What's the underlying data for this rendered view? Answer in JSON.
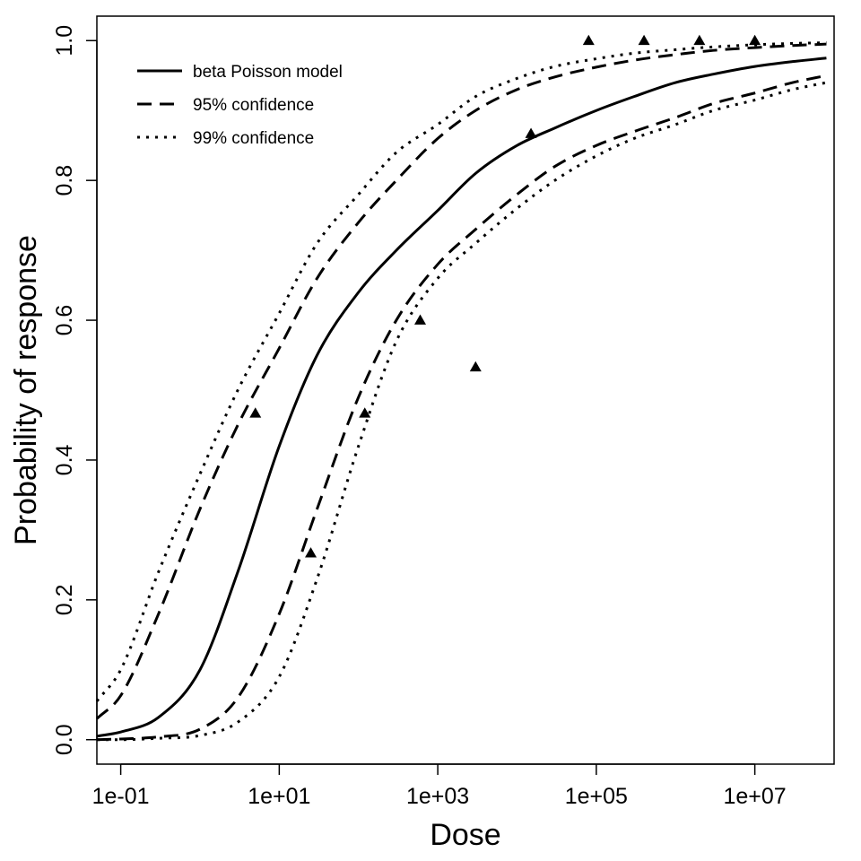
{
  "chart_data": {
    "type": "line",
    "title": "",
    "xlabel": "Dose",
    "ylabel": "Probability of response",
    "x_scale": "log10",
    "xlim": [
      0.05,
      100000000
    ],
    "ylim": [
      -0.035,
      1.035
    ],
    "x_ticks": [
      {
        "value": 0.1,
        "label": "1e-01"
      },
      {
        "value": 10,
        "label": "1e+01"
      },
      {
        "value": 1000,
        "label": "1e+03"
      },
      {
        "value": 100000,
        "label": "1e+05"
      },
      {
        "value": 10000000,
        "label": "1e+07"
      }
    ],
    "y_ticks": [
      {
        "value": 0.0,
        "label": "0.0"
      },
      {
        "value": 0.2,
        "label": "0.2"
      },
      {
        "value": 0.4,
        "label": "0.4"
      },
      {
        "value": 0.6,
        "label": "0.6"
      },
      {
        "value": 0.8,
        "label": "0.8"
      },
      {
        "value": 1.0,
        "label": "1.0"
      }
    ],
    "grid": false,
    "legend_position": "top-left",
    "series": [
      {
        "name": "beta Poisson model",
        "style": "solid",
        "x": [
          0.05,
          0.1,
          0.3,
          1,
          3,
          10,
          30,
          100,
          300,
          1000,
          3000,
          10000,
          30000,
          100000,
          300000,
          1000000,
          3000000,
          10000000,
          30000000,
          80000000
        ],
        "y": [
          0.005,
          0.011,
          0.032,
          0.1,
          0.24,
          0.42,
          0.55,
          0.64,
          0.7,
          0.757,
          0.81,
          0.85,
          0.875,
          0.9,
          0.92,
          0.94,
          0.952,
          0.963,
          0.97,
          0.975
        ]
      },
      {
        "name": "95% confidence",
        "style": "dashed",
        "x": [
          0.05,
          0.1,
          0.3,
          1,
          3,
          10,
          30,
          100,
          300,
          1000,
          3000,
          10000,
          30000,
          100000,
          300000,
          1000000,
          3000000,
          10000000,
          30000000,
          80000000
        ],
        "y": [
          0.03,
          0.063,
          0.18,
          0.33,
          0.45,
          0.56,
          0.66,
          0.74,
          0.8,
          0.86,
          0.9,
          0.93,
          0.948,
          0.962,
          0.972,
          0.98,
          0.986,
          0.99,
          0.993,
          0.995
        ]
      },
      {
        "name": "95% confidence",
        "style": "dashed",
        "x": [
          0.05,
          0.1,
          0.3,
          1,
          3,
          10,
          30,
          100,
          300,
          1000,
          3000,
          10000,
          30000,
          100000,
          300000,
          1000000,
          3000000,
          10000000,
          30000000,
          80000000
        ],
        "y": [
          0.0,
          0.001,
          0.004,
          0.015,
          0.06,
          0.18,
          0.33,
          0.49,
          0.6,
          0.68,
          0.73,
          0.78,
          0.82,
          0.85,
          0.87,
          0.89,
          0.91,
          0.925,
          0.94,
          0.95
        ]
      },
      {
        "name": "99% confidence",
        "style": "dotted",
        "x": [
          0.05,
          0.1,
          0.3,
          1,
          3,
          10,
          30,
          100,
          300,
          1000,
          3000,
          10000,
          30000,
          100000,
          300000,
          1000000,
          3000000,
          10000000,
          30000000,
          80000000
        ],
        "y": [
          0.055,
          0.1,
          0.24,
          0.38,
          0.5,
          0.61,
          0.71,
          0.78,
          0.84,
          0.88,
          0.92,
          0.946,
          0.963,
          0.974,
          0.982,
          0.987,
          0.991,
          0.994,
          0.996,
          0.997
        ]
      },
      {
        "name": "99% confidence",
        "style": "dotted",
        "x": [
          0.05,
          0.1,
          0.3,
          1,
          3,
          10,
          30,
          100,
          300,
          1000,
          3000,
          10000,
          30000,
          100000,
          300000,
          1000000,
          3000000,
          10000000,
          30000000,
          80000000
        ],
        "y": [
          0.0,
          0.0,
          0.002,
          0.006,
          0.025,
          0.09,
          0.23,
          0.42,
          0.57,
          0.66,
          0.71,
          0.76,
          0.8,
          0.835,
          0.86,
          0.88,
          0.9,
          0.915,
          0.93,
          0.94
        ]
      }
    ],
    "points": {
      "marker": "triangle",
      "x": [
        5,
        25,
        120,
        600,
        3000,
        15000,
        80000,
        400000,
        2000000,
        10000000
      ],
      "y": [
        0.467,
        0.267,
        0.467,
        0.6,
        0.533,
        0.867,
        1.0,
        1.0,
        1.0,
        1.0
      ]
    },
    "legend": [
      {
        "label": "beta Poisson model",
        "style": "solid"
      },
      {
        "label": "95% confidence",
        "style": "dashed"
      },
      {
        "label": "99% confidence",
        "style": "dotted"
      }
    ]
  }
}
